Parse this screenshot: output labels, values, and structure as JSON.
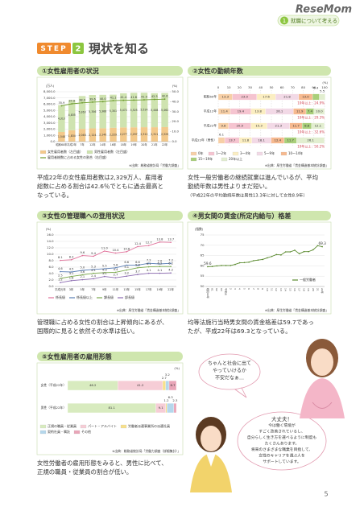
{
  "header": {
    "logo": "ReseMom",
    "chapter_no": "1",
    "chapter": "就職について考える"
  },
  "step": "STEP",
  "step_no": "2",
  "heading": "現状を知る",
  "page_number": "5",
  "illustration": {
    "bubble1": [
      "ちゃんと社会に出て",
      "やっていけるか",
      "不安だなぁ…"
    ],
    "bubble2": [
      "大丈夫！",
      "今は働く環境が",
      "すごく改善されているし、",
      "自分らしく生き方を選べるように制度も",
      "たくさんあります。",
      "将来のさまざまな職業を目指して、",
      "女性のキャリアを選ぶ人を",
      "サポートしています。"
    ]
  },
  "chart_data": [
    {
      "type": "bar",
      "title": "①女性雇用者の状況",
      "y_unit": "(万人)",
      "y2_unit": "(%)",
      "categories": [
        "昭和60年",
        "平成2年",
        "7年",
        "12年",
        "14年",
        "16年",
        "18年",
        "19年",
        "20年",
        "21年",
        "22年"
      ],
      "series": [
        {
          "name": "女性雇用者数（左目盛）",
          "color": "#f3c98b",
          "values": [
            1548,
            1834,
            2048,
            2124,
            2140,
            2229,
            2277,
            2297,
            2312,
            2311,
            2329
          ],
          "value_labels": [
            "1,548",
            "1,834",
            "2,048",
            "2,124",
            "2,140",
            "2,229",
            "2,277",
            "2,297",
            "2,312",
            "2,311",
            "2,329"
          ]
        },
        {
          "name": "男性雇用者数（左目盛）",
          "color": "#cfe3b0",
          "values": [
            4313,
            4835,
            5263,
            5356,
            5366,
            5301,
            5472,
            5525,
            5524,
            5448,
            5462
          ],
          "value_labels": [
            "4,313",
            "4,835",
            "5,263",
            "5,356",
            "5,366",
            "5,301",
            "5,472",
            "5,525",
            "5,524",
            "5,448",
            "5,462"
          ]
        },
        {
          "name": "雇用者総数に占める女性の割合（右目盛）",
          "color": "#6d9b2e",
          "axis": "y2",
          "values": [
            35.9,
            37.9,
            38.9,
            39.6,
            40.0,
            41.1,
            41.4,
            41.6,
            41.9,
            42.3,
            42.6
          ],
          "value_labels": [
            "35.9",
            "37.9",
            "38.9",
            "39.6",
            "40.0",
            "41.1",
            "41.4",
            "41.6",
            "41.9",
            "42.3",
            "42.6"
          ]
        }
      ],
      "ylim": [
        0,
        8000
      ],
      "yticks": [
        {
          "value": 0,
          "label": "0.0"
        },
        {
          "value": 1000,
          "label": "1,000.0"
        },
        {
          "value": 2000,
          "label": "2,000.0"
        },
        {
          "value": 3000,
          "label": "3,000.0"
        },
        {
          "value": 4000,
          "label": "4,000.0"
        },
        {
          "value": 5000,
          "label": "5,000.0"
        },
        {
          "value": 6000,
          "label": "6,000.0"
        },
        {
          "value": 7000,
          "label": "7,000.0"
        },
        {
          "value": 8000,
          "label": "8,000.0"
        }
      ],
      "y2lim": [
        0,
        50
      ],
      "y2ticks": [
        {
          "value": 0,
          "label": "0.0"
        },
        {
          "value": 10,
          "label": "10.0"
        },
        {
          "value": 20,
          "label": "20.0"
        },
        {
          "value": 30,
          "label": "30.0"
        },
        {
          "value": 40,
          "label": "40.0"
        },
        {
          "value": 50,
          "label": "50.0"
        }
      ],
      "grid": true,
      "source": "※出典：総務省統計局「労働力調査」",
      "caption": [
        "平成22年の女性雇用者数は2,329万人、雇用者",
        "総数に占める割合は42.6％でともに過去最高と",
        "なっている。"
      ]
    },
    {
      "type": "stacked_barh",
      "title": "②女性の勤続年数",
      "x_unit": "(%)",
      "categories": [
        "昭和60年",
        "平成12年",
        "平成22年",
        "平成22年（男性）"
      ],
      "series": [
        {
          "name": "0年",
          "color": "#f7cfa6",
          "values": [
            13.3,
            11.4,
            9.8,
            6.1
          ],
          "value_labels": [
            "13.3",
            "11.4",
            "9.8",
            "6.1"
          ]
        },
        {
          "name": "1～2年",
          "color": "#f5c4d0",
          "values": [
            23.0,
            19.4,
            20.9,
            13.7
          ],
          "value_labels": [
            "23.0",
            "19.4",
            "20.9",
            "13.7"
          ]
        },
        {
          "name": "3～4年",
          "color": "#fbeec2",
          "values": [
            17.6,
            13.8,
            15.3,
            11.8
          ],
          "value_labels": [
            "17.6",
            "13.8",
            "15.3",
            "11.8"
          ]
        },
        {
          "name": "5～9年",
          "color": "#f2d9e6",
          "values": [
            21.8,
            26.1,
            21.3,
            18.1
          ],
          "value_labels": [
            "21.8",
            "26.1",
            "21.3",
            "18.1"
          ]
        },
        {
          "name": "10～14年",
          "color": "#f6b98f",
          "values": [
            13.0,
            11.9,
            11.7,
            12.4
          ],
          "value_labels": [
            "13.0",
            "11.9",
            "11.7",
            "12.4"
          ]
        },
        {
          "name": "15～19年",
          "color": "#a9cf7a",
          "values": [
            6.4,
            7.4,
            8.8,
            11.7
          ],
          "value_labels": [
            "6.4",
            "7.4",
            "8.8",
            "11.7"
          ]
        },
        {
          "name": "20年以上",
          "color": "#e2eed0",
          "values": [
            5.5,
            10.0,
            12.1,
            26.1
          ],
          "value_labels": [
            "5.5",
            "10.0",
            "12.1",
            "26.1"
          ]
        }
      ],
      "xlim": [
        0,
        100
      ],
      "xticks": [
        0,
        10,
        20,
        30,
        40,
        50,
        60,
        70,
        80,
        90,
        100
      ],
      "grid": true,
      "annotations": [
        "10年以上：24.9%",
        "10年以上：29.3%",
        "10年以上：32.6%",
        "10年以上：50.2%"
      ],
      "source": "※出典：厚生労働省「賃金構造基本統計調査」",
      "caption": [
        "女性一般労働者の継続就業は進んでいるが、平均",
        "勤続年数は男性よりまだ短い。"
      ],
      "note": "（平成22年の平均勤続年数は男性13.3年に対して女性8.9年）"
    },
    {
      "type": "line",
      "title": "③女性の管理職への登用状況",
      "y_unit": "(%)",
      "categories": [
        "平成元年",
        "3年",
        "5年",
        "7年",
        "9年",
        "11年",
        "13年",
        "15年",
        "17年",
        "19年",
        "22年"
      ],
      "series": [
        {
          "name": "係長級",
          "color": "#e0719a",
          "values": [
            8.1,
            8.3,
            9.6,
            9.4,
            11.0,
            10.4,
            10.8,
            12.4,
            12.7,
            13.8,
            13.7
          ],
          "value_labels": [
            "8.1",
            "8.3",
            "9.6",
            "9.4",
            "11.0",
            "10.4",
            "10.8",
            "12.4",
            "12.7",
            "13.8",
            "13.7"
          ]
        },
        {
          "name": "係長級以上",
          "color": "#5b7fb5",
          "values": [
            4.6,
            4.5,
            5.0,
            5.3,
            5.5,
            5.8,
            6.6,
            6.6,
            7.2,
            7.0,
            7.2
          ],
          "value_labels": [
            "4.6",
            "4.5",
            "5.0",
            "5.3",
            "5.5",
            "5.8",
            "6.6",
            "6.6",
            "7.2",
            "7.0",
            "7.2"
          ]
        },
        {
          "name": "課長級",
          "color": "#7aa84b",
          "values": [
            2.5,
            3.1,
            3.6,
            4.1,
            4.3,
            4.4,
            5.1,
            5.8,
            6.1,
            6.2,
            6.2
          ],
          "value_labels": [
            "2.5",
            "3.1",
            "3.6",
            "4.1",
            "4.3",
            "4.4",
            "5.1",
            "5.8",
            "6.1",
            "6.2",
            "6.2"
          ]
        },
        {
          "name": "部長級",
          "color": "#8c6bb1",
          "values": [
            1.2,
            1.8,
            2.1,
            2.4,
            3.1,
            2.7,
            3.2,
            3.7,
            4.1,
            4.1,
            4.2
          ],
          "value_labels": [
            "1.2",
            "1.8",
            "2.1",
            "2.4",
            "3.1",
            "2.7",
            "3.2",
            "3.7",
            "4.1",
            "4.1",
            "4.2"
          ]
        }
      ],
      "ylim": [
        0,
        16
      ],
      "yticks": [
        {
          "value": 0,
          "label": "0.0"
        },
        {
          "value": 2,
          "label": "2.0"
        },
        {
          "value": 4,
          "label": "4.0"
        },
        {
          "value": 6,
          "label": "6.0"
        },
        {
          "value": 8,
          "label": "8.0"
        },
        {
          "value": 10,
          "label": "10.0"
        },
        {
          "value": 12,
          "label": "12.0"
        },
        {
          "value": 14,
          "label": "14.0"
        },
        {
          "value": 16,
          "label": "16.0"
        }
      ],
      "grid": true,
      "source": "※出典：厚生労働省「賃金構造基本統計調査」",
      "caption": [
        "管理職に占める女性の割合は上昇傾向にあるが、",
        "国際的に見ると依然その水準は低い。"
      ]
    },
    {
      "type": "line",
      "title": "④男女間の賃金(所定内給与）格差",
      "y_unit": "(指数)",
      "categories": [
        "昭和60年",
        "61",
        "62",
        "63",
        "平成元",
        "2",
        "3",
        "4",
        "5",
        "6",
        "7",
        "8",
        "9",
        "10",
        "11",
        "12",
        "13",
        "14",
        "15",
        "16",
        "17",
        "18",
        "19",
        "20",
        "21",
        "22年"
      ],
      "series": [
        {
          "name": "一般労働者",
          "color": "#5a8a2e",
          "values": [
            59.6,
            59.7,
            60.0,
            60.2,
            60.2,
            60.2,
            60.7,
            61.5,
            61.6,
            61.8,
            62.5,
            62.8,
            63.1,
            63.9,
            64.6,
            65.5,
            65.3,
            66.8,
            66.8,
            67.6,
            65.9,
            66.9,
            66.9,
            67.8,
            69.8,
            69.3
          ],
          "value_labels": [
            "59.6",
            null,
            null,
            null,
            null,
            null,
            null,
            null,
            null,
            null,
            null,
            null,
            null,
            null,
            null,
            null,
            null,
            null,
            null,
            null,
            null,
            null,
            null,
            null,
            null,
            "69.3"
          ]
        }
      ],
      "ylim": [
        50,
        75
      ],
      "yticks": [
        50,
        55,
        60,
        65,
        70,
        75
      ],
      "grid": true,
      "source": "※出典：厚生労働省「賃金構造基本統計調査」",
      "caption": [
        "均等法施行当時男女間の賃金格差は59.7であっ",
        "たが、平成22年は69.3となっている。"
      ]
    },
    {
      "type": "stacked_barh",
      "title": "⑤女性雇用者の雇用形態",
      "x_unit": "(%)",
      "categories": [
        "女性（平成22年）",
        "男性（平成22年）"
      ],
      "series": [
        {
          "name": "正規の職員・従業員",
          "color": "#d8ebbf",
          "values": [
            46.2,
            81.1
          ]
        },
        {
          "name": "パート・アルバイト",
          "color": "#f6cdd6",
          "values": [
            41.2,
            9.1
          ]
        },
        {
          "name": "労働者派遣事業所の派遣社員",
          "color": "#f7e08c",
          "values": [
            2.7,
            1.2
          ]
        },
        {
          "name": "契約社員・嘱託",
          "color": "#b5d7ec",
          "values": [
            3.2,
            6.3
          ]
        },
        {
          "name": "その他",
          "color": "#e9a5b8",
          "values": [
            6.7,
            2.3
          ]
        }
      ],
      "xlim": [
        0,
        100
      ],
      "source": "※出典：総務省統計局「労働力調査（詳細集計）」",
      "caption": [
        "女性労働者の雇用形態をみると、男性に比べて、",
        "正規の職員・従業員の割合が低い。"
      ]
    }
  ]
}
